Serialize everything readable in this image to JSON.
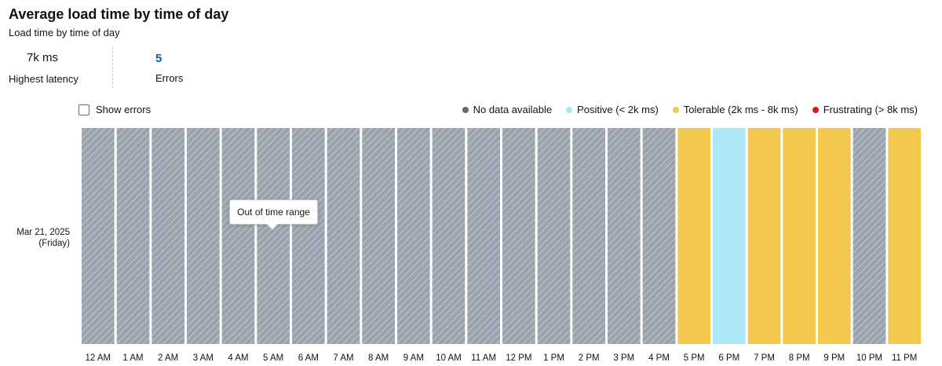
{
  "header": {
    "title": "Average load time by time of day",
    "subtitle": "Load time by time of day"
  },
  "metrics": {
    "latency_value": "7k ms",
    "latency_label": "Highest latency",
    "errors_value": "5",
    "errors_label": "Errors"
  },
  "controls": {
    "show_errors_label": "Show errors",
    "show_errors_checked": false
  },
  "legend": [
    {
      "label": "No data available",
      "color": "#5f6b7a"
    },
    {
      "label": "Positive (< 2k ms)",
      "color": "#aee8f8"
    },
    {
      "label": "Tolerable (2k ms - 8k ms)",
      "color": "#f2c94c"
    },
    {
      "label": "Frustrating (> 8k ms)",
      "color": "#d91515"
    }
  ],
  "row": {
    "date": "Mar 21, 2025",
    "day": "(Friday)"
  },
  "tooltip": {
    "text": "Out of time range"
  },
  "chart_data": {
    "type": "heatmap",
    "title": "Average load time by time of day",
    "subtitle": "Load time by time of day",
    "x": [
      "12 AM",
      "1 AM",
      "2 AM",
      "3 AM",
      "4 AM",
      "5 AM",
      "6 AM",
      "7 AM",
      "8 AM",
      "9 AM",
      "10 AM",
      "11 AM",
      "12 PM",
      "1 PM",
      "2 PM",
      "3 PM",
      "4 PM",
      "5 PM",
      "6 PM",
      "7 PM",
      "8 PM",
      "9 PM",
      "10 PM",
      "11 PM"
    ],
    "y": [
      "Mar 21, 2025 (Friday)"
    ],
    "cells": [
      "no-data",
      "no-data",
      "no-data",
      "no-data",
      "no-data",
      "no-data",
      "no-data",
      "no-data",
      "no-data",
      "no-data",
      "no-data",
      "no-data",
      "no-data",
      "no-data",
      "no-data",
      "no-data",
      "no-data",
      "tolerable",
      "positive",
      "tolerable",
      "tolerable",
      "tolerable",
      "no-data",
      "tolerable"
    ],
    "category_colors": {
      "no-data": "#a4abb5",
      "positive": "#aee8f8",
      "tolerable": "#f2c94c",
      "frustrating": "#d91515"
    },
    "legend_placement": "top-right",
    "grid": false
  }
}
